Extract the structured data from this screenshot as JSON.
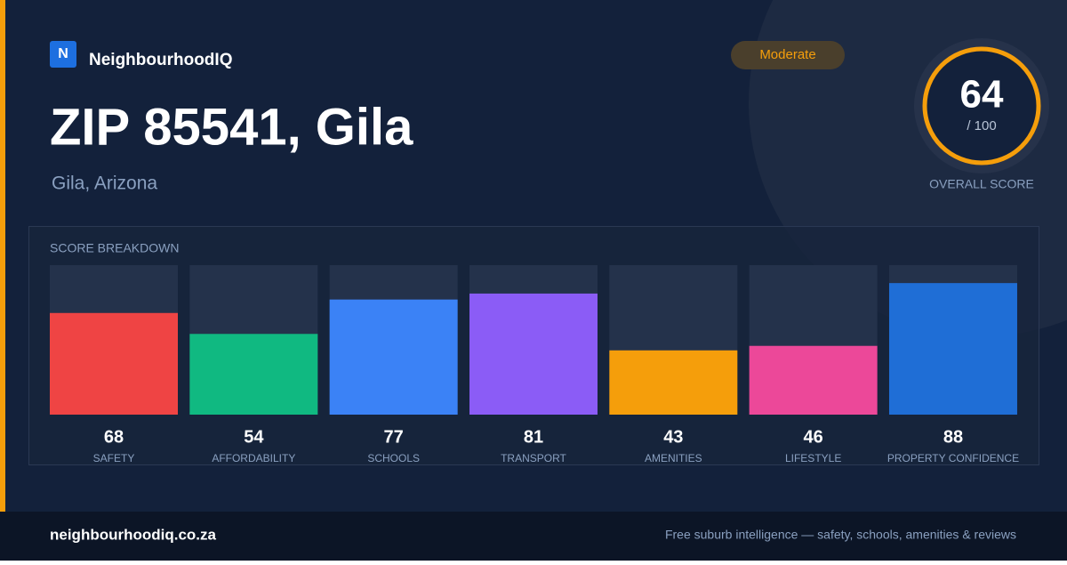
{
  "brand": {
    "logo": "N",
    "name": "NeighbourhoodIQ"
  },
  "badge": "Moderate",
  "title": "ZIP 85541, Gila",
  "subtitle": "Gila, Arizona",
  "score": {
    "value": 64,
    "scale": "/ 100",
    "label": "OVERALL SCORE"
  },
  "chart_data": {
    "type": "bar",
    "title": "SCORE BREAKDOWN",
    "categories": [
      "SAFETY",
      "AFFORDABILITY",
      "SCHOOLS",
      "TRANSPORT",
      "AMENITIES",
      "LIFESTYLE",
      "PROPERTY CONFIDENCE"
    ],
    "values": [
      68,
      54,
      77,
      81,
      43,
      46,
      88
    ],
    "colors": [
      "#ef4444",
      "#10b981",
      "#3b82f6",
      "#8b5cf6",
      "#f59e0b",
      "#ec4899",
      "#1f6ed6"
    ],
    "ylim": [
      0,
      100
    ]
  },
  "footer": {
    "site": "neighbourhoodiq.co.za",
    "tagline": "Free suburb intelligence — safety, schools, amenities & reviews"
  }
}
